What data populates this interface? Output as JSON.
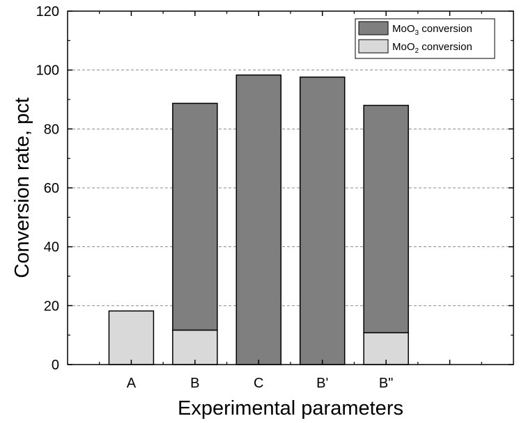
{
  "chart_data": {
    "type": "bar",
    "stacked": true,
    "categories": [
      "A",
      "B",
      "C",
      "B'",
      "B\""
    ],
    "series": [
      {
        "name": "MoO2 conversion",
        "color": "#d9d9d9",
        "values": [
          18.2,
          11.7,
          0,
          0,
          10.8
        ]
      },
      {
        "name": "MoO3 conversion",
        "color": "#7f7f7f",
        "values": [
          0,
          77.0,
          98.3,
          97.6,
          77.2
        ]
      }
    ],
    "legend": [
      {
        "label_main": "MoO",
        "label_sub": "3",
        "label_rest": " conversion",
        "color": "#7f7f7f"
      },
      {
        "label_main": "MoO",
        "label_sub": "2",
        "label_rest": " conversion",
        "color": "#d9d9d9"
      }
    ],
    "title": "",
    "xlabel": "Experimental parameters",
    "ylabel": "Conversion rate, pct",
    "ylim": [
      0,
      120
    ],
    "yticks": [
      0,
      20,
      40,
      60,
      80,
      100,
      120
    ],
    "gridlines_at": [
      20,
      40,
      60,
      80,
      100
    ],
    "legend_position": "top-right"
  }
}
